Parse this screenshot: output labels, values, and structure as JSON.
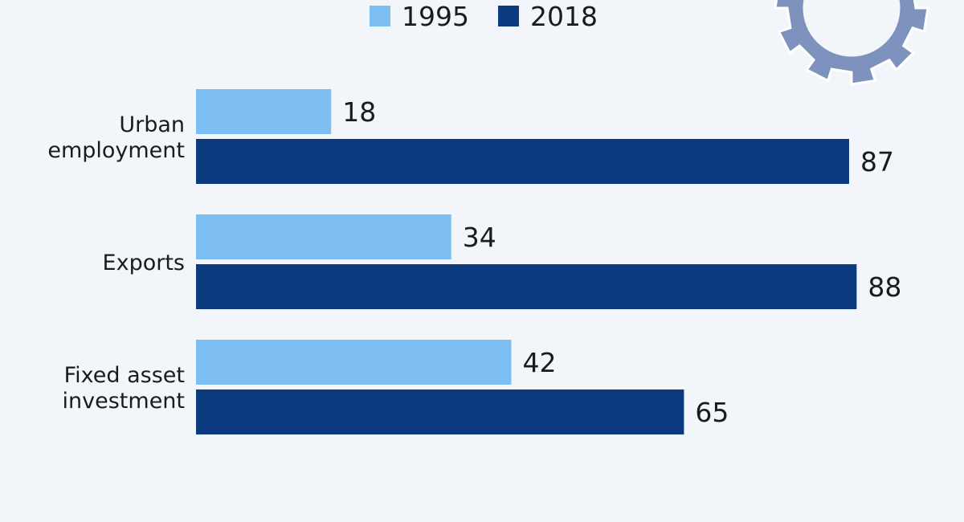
{
  "chart_data": {
    "type": "bar",
    "orientation": "horizontal",
    "categories": [
      "Urban employment",
      "Exports",
      "Fixed asset investment"
    ],
    "category_lines": [
      [
        "Urban",
        "employment"
      ],
      [
        "Exports"
      ],
      [
        "Fixed asset",
        "investment"
      ]
    ],
    "series": [
      {
        "name": "1995",
        "values": [
          18,
          34,
          42
        ],
        "color": "#7dbef3"
      },
      {
        "name": "2018",
        "values": [
          87,
          88,
          65
        ],
        "color": "#0c3a7e"
      }
    ],
    "xlim": [
      0,
      100
    ],
    "grid": false,
    "legend_position": "top-center",
    "data_labels": true
  },
  "colors": {
    "background": "#f2f6fa",
    "gear": "#7d93bd"
  },
  "decoration": {
    "icon": "gear-icon"
  }
}
